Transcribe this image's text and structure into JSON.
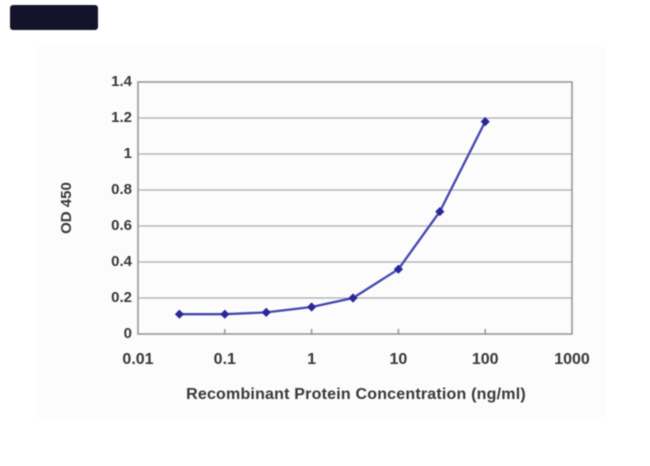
{
  "logo_box": {
    "color": "#13132b"
  },
  "chart": {
    "outer_background": "#fcfcfc",
    "frame_color": "#97979b",
    "grid_color": "#ababab",
    "tick_color": "#8f8f93",
    "text_color": "#38383a"
  },
  "chart_data": {
    "type": "line",
    "title": "",
    "xlabel": "Recombinant Protein Concentration (ng/ml)",
    "ylabel": "OD 450",
    "x_scale": "log",
    "xlim": [
      0.01,
      1000
    ],
    "ylim": [
      0,
      1.4
    ],
    "x_tick_labels": [
      "0.01",
      "0.1",
      "1",
      "10",
      "100",
      "1000"
    ],
    "y_tick_labels": [
      "1.4",
      "1.2",
      "1",
      "0.8",
      "0.6",
      "0.4",
      "0.2",
      "0"
    ],
    "grid": true,
    "legend_position": "none",
    "series": [
      {
        "name": "OD 450",
        "x": [
          0.03,
          0.1,
          0.3,
          1,
          3,
          10,
          30,
          100
        ],
        "y": [
          0.11,
          0.11,
          0.12,
          0.15,
          0.2,
          0.36,
          0.68,
          1.18
        ],
        "line_color": "#4547ae",
        "marker_color": "#28289a",
        "marker": "diamond"
      }
    ]
  }
}
